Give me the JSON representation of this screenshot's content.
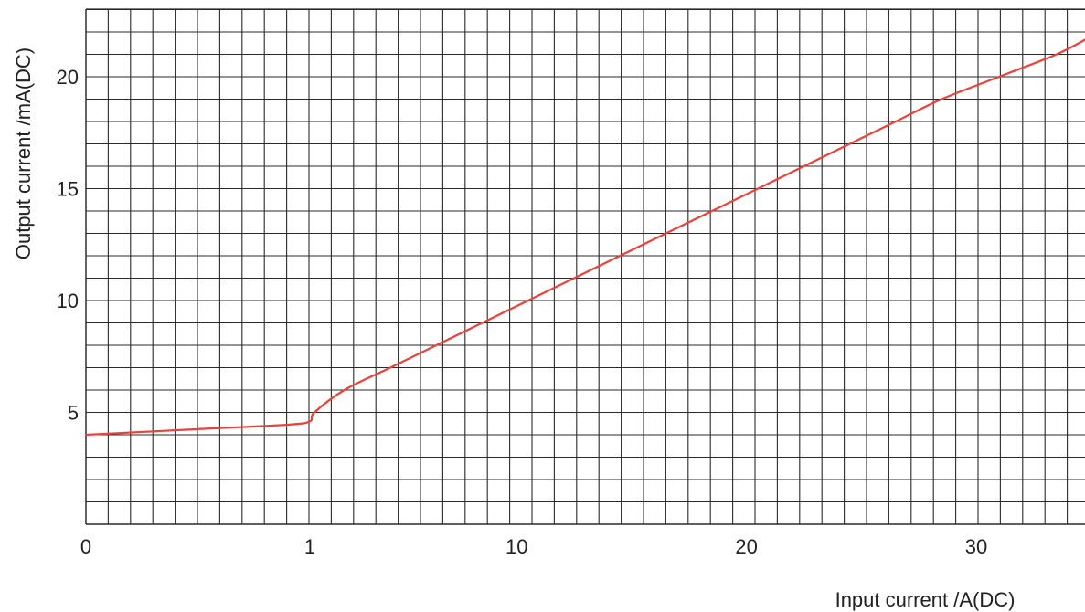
{
  "chart_data": {
    "type": "line",
    "title": "",
    "xlabel": "Input current /A(DC)",
    "ylabel": "Output current /mA(DC)",
    "x_scale": "segmented",
    "x_ticks": [
      {
        "value": 0,
        "label": "0"
      },
      {
        "value": 1,
        "label": "1"
      },
      {
        "value": 10,
        "label": "10"
      },
      {
        "value": 20,
        "label": "20"
      },
      {
        "value": 30,
        "label": "30"
      }
    ],
    "y_ticks": [
      {
        "value": 5,
        "label": "5"
      },
      {
        "value": 10,
        "label": "10"
      },
      {
        "value": 15,
        "label": "15"
      },
      {
        "value": 20,
        "label": "20"
      }
    ],
    "xlim": [
      0,
      34
    ],
    "ylim": [
      0,
      23
    ],
    "grid": true,
    "series": [
      {
        "color": "#e8423a",
        "points": [
          [
            0,
            4.0
          ],
          [
            0.5,
            4.25
          ],
          [
            0.9,
            4.45
          ],
          [
            1.0,
            4.6
          ],
          [
            1.2,
            5.0
          ],
          [
            2.5,
            6.0
          ],
          [
            4.5,
            7.0
          ],
          [
            6.5,
            8.0
          ],
          [
            8.5,
            9.0
          ],
          [
            10.5,
            10.0
          ],
          [
            12.5,
            11.0
          ],
          [
            14.5,
            12.0
          ],
          [
            16.5,
            13.0
          ],
          [
            18.5,
            14.0
          ],
          [
            20.5,
            15.0
          ],
          [
            22.5,
            16.0
          ],
          [
            24.5,
            17.0
          ],
          [
            26.5,
            18.0
          ],
          [
            28.5,
            19.0
          ],
          [
            31,
            20.0
          ],
          [
            33.5,
            21.0
          ],
          [
            35,
            21.8
          ]
        ]
      }
    ]
  }
}
